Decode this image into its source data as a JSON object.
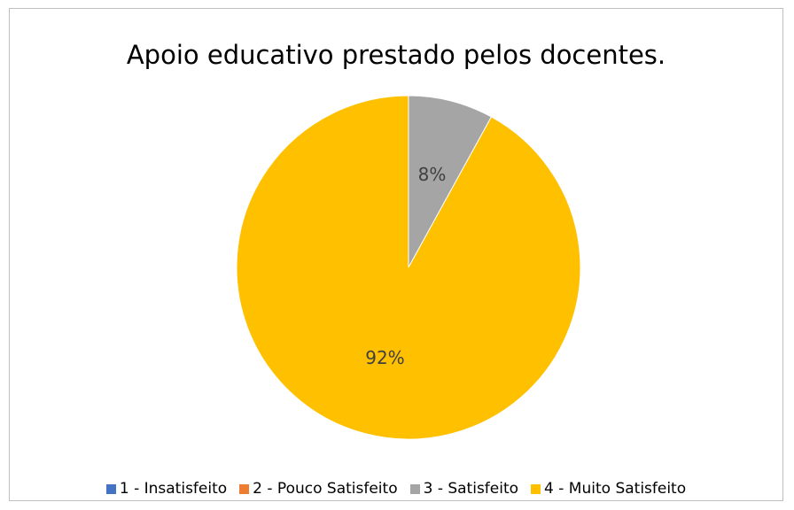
{
  "chart_data": {
    "type": "pie",
    "title": "Apoio educativo prestado pelos docentes.",
    "categories": [
      "1 - Insatisfeito",
      "2 - Pouco Satisfeito",
      "3 - Satisfeito",
      "4 - Muito Satisfeito"
    ],
    "values": [
      0,
      0,
      8,
      92
    ],
    "data_labels": [
      "",
      "",
      "8%",
      "92%"
    ],
    "colors": [
      "#4472c4",
      "#ed7d31",
      "#a5a5a5",
      "#ffc000"
    ],
    "legend_position": "bottom"
  }
}
